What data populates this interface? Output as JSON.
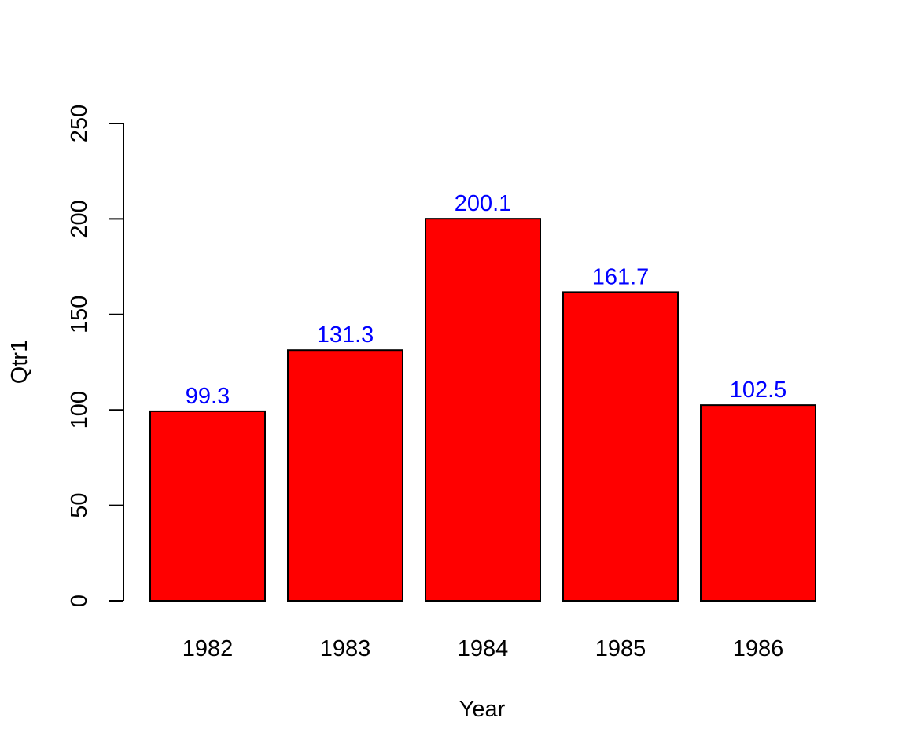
{
  "chart_data": {
    "type": "bar",
    "title": "",
    "xlabel": "Year",
    "ylabel": "Qtr1",
    "categories": [
      "1982",
      "1983",
      "1984",
      "1985",
      "1986"
    ],
    "values": [
      99.3,
      131.3,
      200.1,
      161.7,
      102.5
    ],
    "data_labels": [
      "99.3",
      "131.3",
      "200.1",
      "161.7",
      "102.5"
    ],
    "ylim": [
      0,
      250
    ],
    "yticks": [
      0,
      50,
      100,
      150,
      200,
      250
    ],
    "ytick_labels": [
      "0",
      "50",
      "100",
      "150",
      "200",
      "250"
    ],
    "grid": false,
    "legend": "none",
    "colors": {
      "bar_fill": "#ff0000",
      "bar_stroke": "#000000",
      "data_label": "#0000ff",
      "axis": "#000000"
    }
  }
}
